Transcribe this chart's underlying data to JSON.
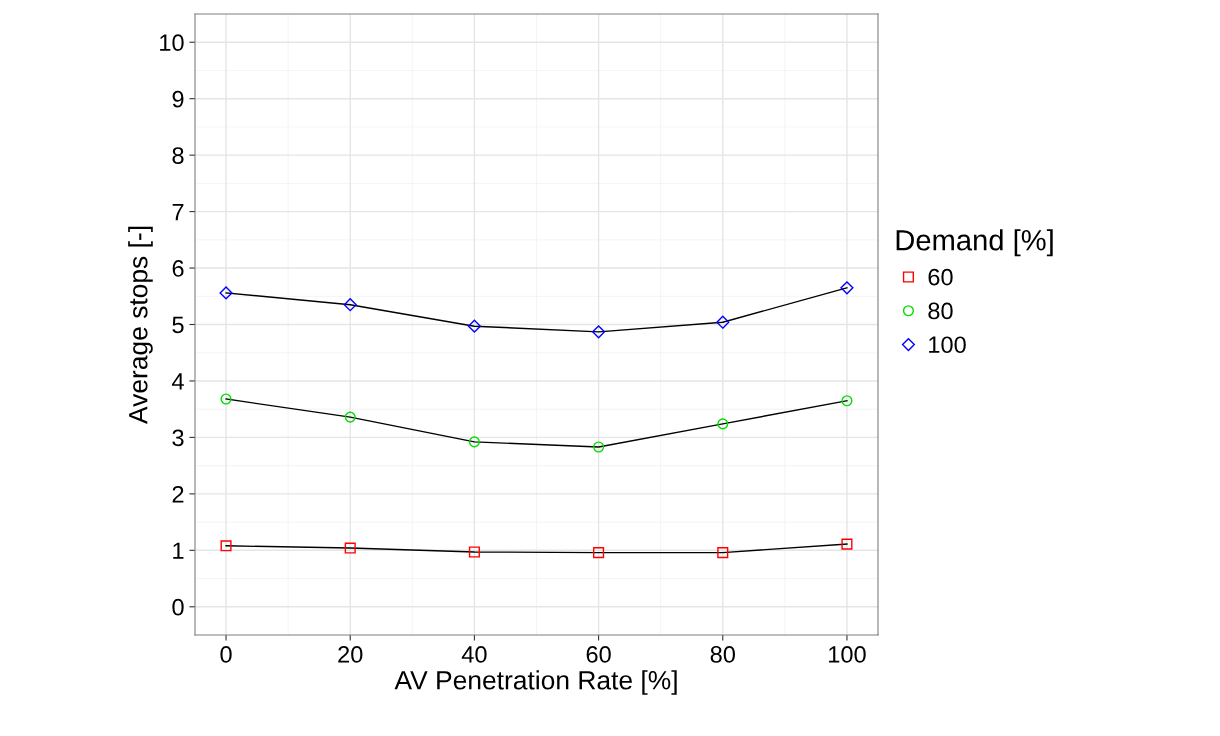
{
  "chart_data": {
    "type": "line",
    "xlabel": "AV Penetration Rate [%]",
    "ylabel": "Average stops [-]",
    "legend_title": "Demand [%]",
    "x": [
      0,
      20,
      40,
      60,
      80,
      100
    ],
    "series": [
      {
        "name": "60",
        "color": "#ff0000",
        "marker": "square",
        "values": [
          1.08,
          1.04,
          0.97,
          0.96,
          0.96,
          1.11
        ]
      },
      {
        "name": "80",
        "color": "#00dd00",
        "marker": "circle",
        "values": [
          3.68,
          3.36,
          2.92,
          2.83,
          3.24,
          3.65
        ]
      },
      {
        "name": "100",
        "color": "#0000ff",
        "marker": "diamond",
        "values": [
          5.56,
          5.35,
          4.97,
          4.87,
          5.04,
          5.65
        ]
      }
    ],
    "xlim": [
      -5,
      105
    ],
    "ylim": [
      -0.5,
      10.5
    ],
    "xticks": [
      0,
      20,
      40,
      60,
      80,
      100
    ],
    "yticks": [
      0,
      1,
      2,
      3,
      4,
      5,
      6,
      7,
      8,
      9,
      10
    ],
    "grid": true,
    "legend": "right",
    "line_style": "solid"
  }
}
